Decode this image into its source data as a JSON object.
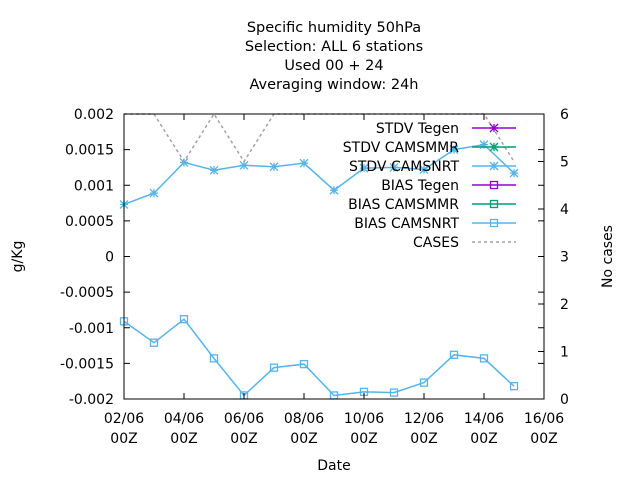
{
  "chart_data": {
    "type": "line",
    "title_lines": [
      "Specific humidity 50hPa",
      "Selection: ALL       6 stations",
      "Used  00 + 24",
      "Averaging window: 24h"
    ],
    "xlabel": "Date",
    "ylabel": "g/Kg",
    "y2label": "No cases",
    "x_ticks": [
      {
        "top": "02/06",
        "bottom": "00Z"
      },
      {
        "top": "04/06",
        "bottom": "00Z"
      },
      {
        "top": "06/06",
        "bottom": "00Z"
      },
      {
        "top": "08/06",
        "bottom": "00Z"
      },
      {
        "top": "10/06",
        "bottom": "00Z"
      },
      {
        "top": "12/06",
        "bottom": "00Z"
      },
      {
        "top": "14/06",
        "bottom": "00Z"
      },
      {
        "top": "16/06",
        "bottom": "00Z"
      }
    ],
    "xlim": [
      2,
      16
    ],
    "ylim": [
      -0.002,
      0.002
    ],
    "y_ticks": [
      "0.002",
      "0.0015",
      "0.001",
      "0.0005",
      "0",
      "-0.0005",
      "-0.001",
      "-0.0015",
      "-0.002"
    ],
    "y_tick_values": [
      0.002,
      0.0015,
      0.001,
      0.0005,
      0,
      -0.0005,
      -0.001,
      -0.0015,
      -0.002
    ],
    "y2lim": [
      0,
      6
    ],
    "y2_ticks": [
      "6",
      "5",
      "4",
      "3",
      "2",
      "1",
      "0"
    ],
    "y2_tick_values": [
      6,
      5,
      4,
      3,
      2,
      1,
      0
    ],
    "legend_position": "top-right",
    "series": [
      {
        "name": "STDV Tegen",
        "color": "#9400d3",
        "marker": "star",
        "axis": "y",
        "x": [],
        "values": []
      },
      {
        "name": "STDV CAMSMMR",
        "color": "#009e73",
        "marker": "star",
        "axis": "y",
        "x": [],
        "values": []
      },
      {
        "name": "STDV CAMSNRT",
        "color": "#56b4e9",
        "marker": "star",
        "axis": "y",
        "x": [
          2,
          3,
          4,
          5,
          6,
          7,
          8,
          9,
          10,
          11,
          12,
          13,
          14,
          15
        ],
        "values": [
          0.00073,
          0.00089,
          0.00132,
          0.00121,
          0.00128,
          0.00126,
          0.00131,
          0.00093,
          0.00124,
          0.00125,
          0.00122,
          0.0015,
          0.00157,
          0.00117
        ]
      },
      {
        "name": "BIAS Tegen",
        "color": "#9400d3",
        "marker": "square",
        "axis": "y",
        "x": [],
        "values": []
      },
      {
        "name": "BIAS CAMSMMR",
        "color": "#009e73",
        "marker": "square",
        "axis": "y",
        "x": [],
        "values": []
      },
      {
        "name": "BIAS CAMSNRT",
        "color": "#56b4e9",
        "marker": "square",
        "axis": "y",
        "x": [
          2,
          3,
          4,
          5,
          6,
          7,
          8,
          9,
          10,
          11,
          12,
          13,
          14,
          15
        ],
        "values": [
          -0.00091,
          -0.00121,
          -0.00088,
          -0.00143,
          -0.00195,
          -0.00156,
          -0.00151,
          -0.00195,
          -0.0019,
          -0.00191,
          -0.00177,
          -0.00138,
          -0.00143,
          -0.00182
        ]
      },
      {
        "name": "CASES",
        "color": "#a0a0a0",
        "marker": "none",
        "dashed": true,
        "axis": "y2",
        "x": [
          2,
          3,
          4,
          5,
          6,
          7,
          8,
          9,
          10,
          11,
          12,
          13,
          14,
          15
        ],
        "values": [
          6,
          6,
          5,
          6,
          5,
          6,
          6,
          6,
          6,
          6,
          6,
          6,
          6,
          5
        ]
      }
    ]
  }
}
